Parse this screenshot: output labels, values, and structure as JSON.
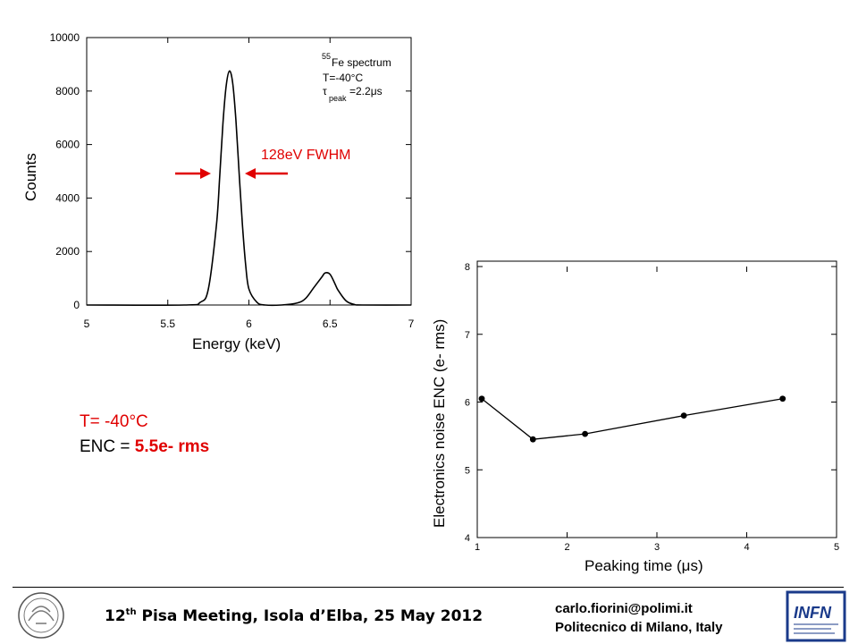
{
  "chart_data": [
    {
      "type": "line",
      "title": "",
      "xlabel": "Energy (keV)",
      "ylabel": "Counts",
      "xlim": [
        5,
        7
      ],
      "ylim": [
        0,
        10000
      ],
      "x_ticks": [
        "5",
        "5.5",
        "6",
        "6.5",
        "7"
      ],
      "y_ticks": [
        "0",
        "2000",
        "4000",
        "6000",
        "8000",
        "10000"
      ],
      "series": [
        {
          "x": [
            5.0,
            5.6,
            5.7,
            5.75,
            5.8,
            5.82,
            5.84,
            5.86,
            5.88,
            5.9,
            5.92,
            5.94,
            5.96,
            5.98,
            6.0,
            6.05,
            6.1,
            6.2,
            6.3,
            6.35,
            6.4,
            6.45,
            6.47,
            6.5,
            6.53,
            6.55,
            6.6,
            6.65,
            6.7,
            7.0
          ],
          "values": [
            0,
            0,
            100,
            600,
            3000,
            4800,
            6800,
            8200,
            8750,
            8300,
            6900,
            4900,
            3000,
            1500,
            600,
            100,
            0,
            0,
            80,
            250,
            650,
            1050,
            1200,
            1150,
            800,
            550,
            150,
            20,
            0,
            0
          ]
        }
      ],
      "annotation": {
        "isotope_mass": "55",
        "isotope_label": "Fe spectrum",
        "temperature": "T=-40°C",
        "tau_symbol": "τ",
        "tau_subscript": "peak",
        "tau_value": "=2.2μs",
        "fwhm_label": "128eV FWHM"
      }
    },
    {
      "type": "line",
      "title": "",
      "xlabel": "Peaking time (μs)",
      "ylabel": "Electronics noise ENC (e- rms)",
      "xlim": [
        1,
        5
      ],
      "ylim": [
        4,
        8
      ],
      "x_ticks": [
        "1",
        "2",
        "3",
        "4",
        "5"
      ],
      "y_ticks": [
        "4",
        "5",
        "6",
        "7",
        "8"
      ],
      "series": [
        {
          "x": [
            1.05,
            1.62,
            2.2,
            3.3,
            4.4
          ],
          "values": [
            6.05,
            5.45,
            5.53,
            5.8,
            6.05
          ]
        }
      ]
    }
  ],
  "text": {
    "temp": "T= -40°C",
    "enc_prefix": "ENC = ",
    "enc_value": "5.5e- rms"
  },
  "footer": {
    "meeting_ordinal": "12",
    "meeting_sup": "th",
    "meeting_rest": " Pisa Meeting, Isola d’Elba, 25 May 2012",
    "email": "carlo.fiorini@polimi.it",
    "affiliation": "Politecnico di Milano, Italy",
    "logo_right_text": "INFN"
  },
  "colors": {
    "accent_red": "#e00000",
    "infn_blue": "#1a3a8a"
  }
}
